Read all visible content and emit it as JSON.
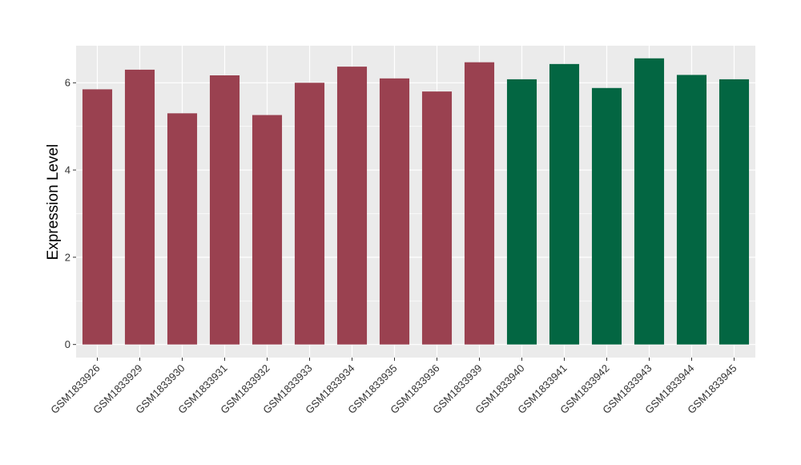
{
  "chart_data": {
    "type": "bar",
    "title": "",
    "xlabel": "",
    "ylabel": "Expression Level",
    "ylim": [
      -0.3,
      6.85
    ],
    "yticks": [
      0,
      2,
      4,
      6
    ],
    "yticks_labels": [
      "0",
      "2",
      "4",
      "6"
    ],
    "grid": true,
    "legend": "none",
    "categories": [
      "GSM1833926",
      "GSM1833929",
      "GSM1833930",
      "GSM1833931",
      "GSM1833932",
      "GSM1833933",
      "GSM1833934",
      "GSM1833935",
      "GSM1833936",
      "GSM1833939",
      "GSM1833940",
      "GSM1833941",
      "GSM1833942",
      "GSM1833943",
      "GSM1833944",
      "GSM1833945"
    ],
    "values": [
      5.85,
      6.3,
      5.3,
      6.17,
      5.26,
      6.0,
      6.37,
      6.1,
      5.8,
      6.47,
      6.08,
      6.43,
      5.88,
      6.56,
      6.18,
      6.08
    ],
    "groups": [
      1,
      1,
      1,
      1,
      1,
      1,
      1,
      1,
      1,
      1,
      2,
      2,
      2,
      2,
      2,
      2
    ],
    "group_colors": {
      "1": "#9a4150",
      "2": "#036642"
    },
    "panel_color": "#ebebeb",
    "grid_color": "#ffffff"
  }
}
